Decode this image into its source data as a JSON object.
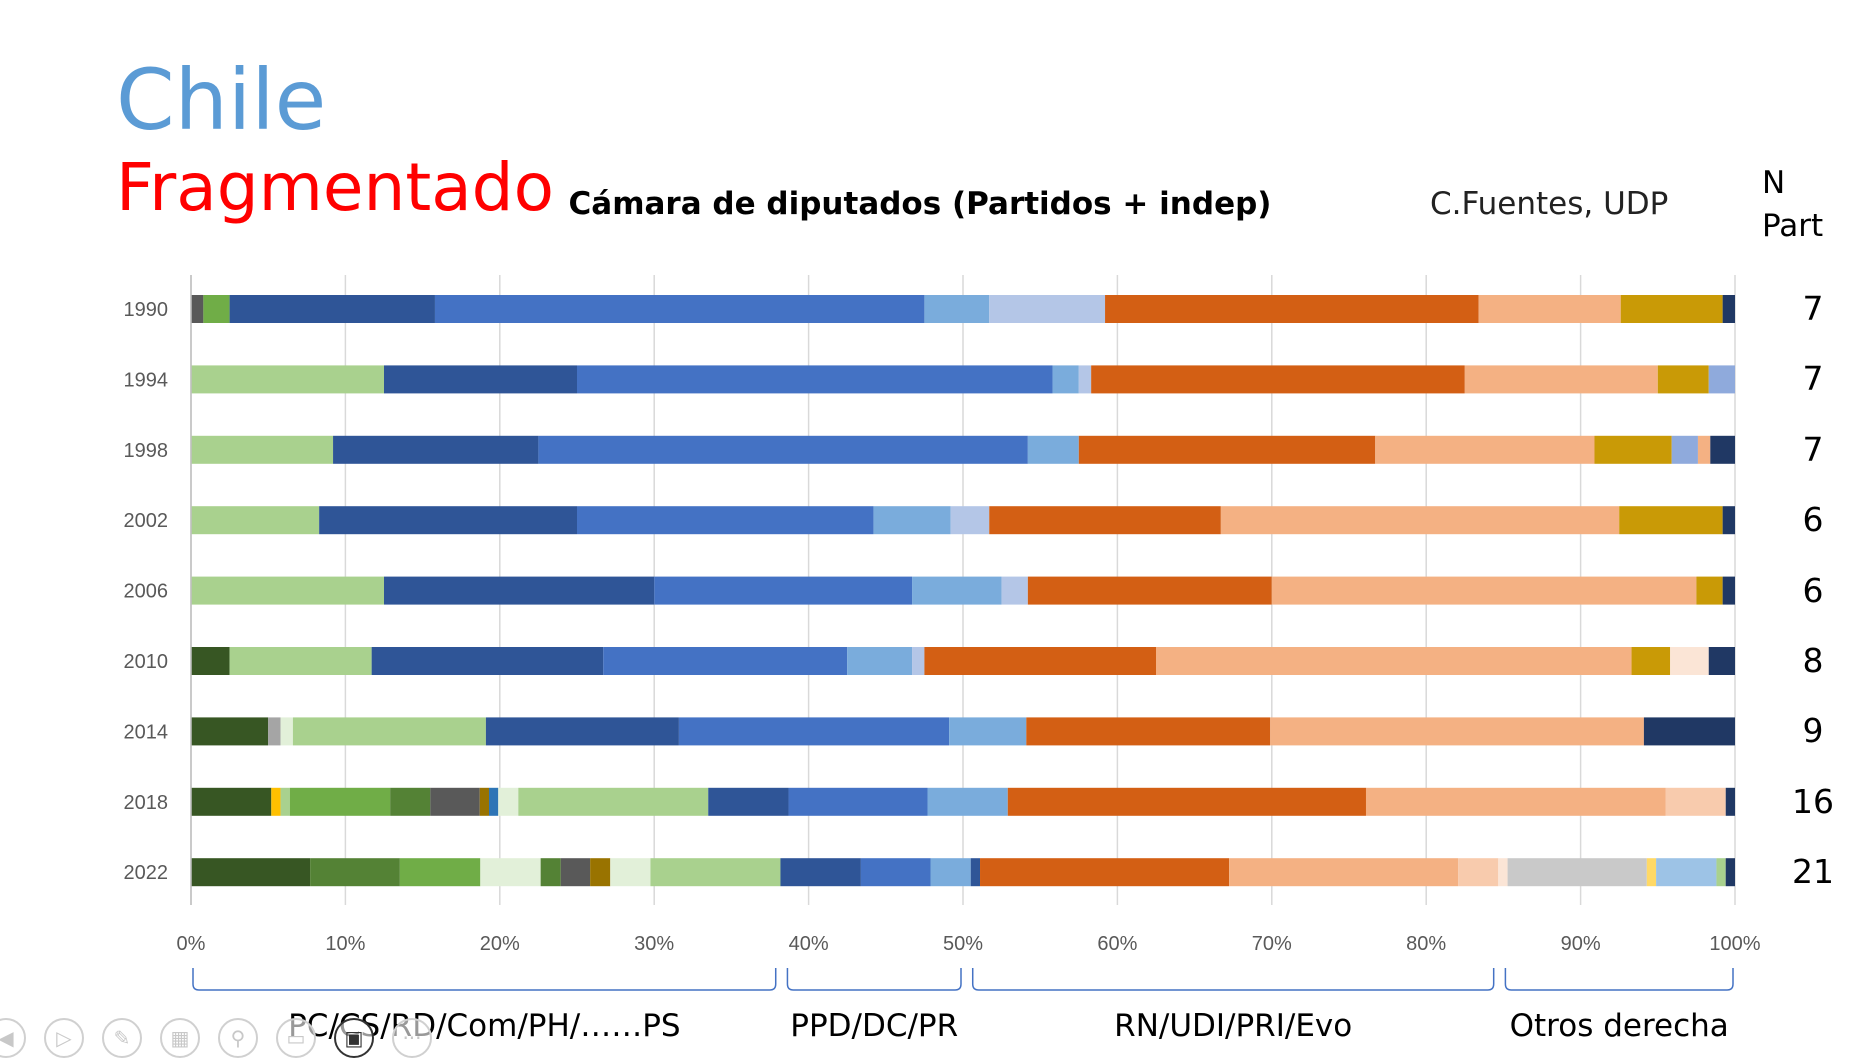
{
  "header": {
    "title_line1": "Chile",
    "title_line2": "Fragmentado",
    "author": "C.Fuentes, UDP",
    "npart_n": "N",
    "npart_part": "Part"
  },
  "chart_data": {
    "type": "bar",
    "orientation": "horizontal",
    "stacked": "percent",
    "title": "Cámara de diputados (Partidos + indep)",
    "categories": [
      "1990",
      "1994",
      "1998",
      "2002",
      "2006",
      "2010",
      "2014",
      "2018",
      "2022"
    ],
    "xlim": [
      0,
      100
    ],
    "xticks": [
      "0%",
      "10%",
      "20%",
      "30%",
      "40%",
      "50%",
      "60%",
      "70%",
      "80%",
      "90%",
      "100%"
    ],
    "grid": true,
    "legend": "none",
    "rows": [
      {
        "year": "1990",
        "n_part": "7",
        "segments": [
          {
            "value": 0.8,
            "color": "#595959"
          },
          {
            "value": 1.7,
            "color": "#70ad47"
          },
          {
            "value": 13.3,
            "color": "#2f5597"
          },
          {
            "value": 31.7,
            "color": "#4472c4"
          },
          {
            "value": 4.2,
            "color": "#7aacdc"
          },
          {
            "value": 7.5,
            "color": "#b4c6e7"
          },
          {
            "value": 24.2,
            "color": "#d35f14"
          },
          {
            "value": 9.2,
            "color": "#f4b183"
          },
          {
            "value": 6.6,
            "color": "#c99a06"
          },
          {
            "value": 0.8,
            "color": "#203864"
          }
        ]
      },
      {
        "year": "1994",
        "n_part": "7",
        "segments": [
          {
            "value": 12.5,
            "color": "#a9d18e"
          },
          {
            "value": 12.5,
            "color": "#2f5597"
          },
          {
            "value": 30.8,
            "color": "#4472c4"
          },
          {
            "value": 1.7,
            "color": "#7aacdc"
          },
          {
            "value": 0.8,
            "color": "#b4c6e7"
          },
          {
            "value": 24.2,
            "color": "#d35f14"
          },
          {
            "value": 12.5,
            "color": "#f4b183"
          },
          {
            "value": 3.3,
            "color": "#c99a06"
          },
          {
            "value": 1.7,
            "color": "#8faadc"
          }
        ]
      },
      {
        "year": "1998",
        "n_part": "7",
        "segments": [
          {
            "value": 9.2,
            "color": "#a9d18e"
          },
          {
            "value": 13.3,
            "color": "#2f5597"
          },
          {
            "value": 31.7,
            "color": "#4472c4"
          },
          {
            "value": 3.3,
            "color": "#7aacdc"
          },
          {
            "value": 19.2,
            "color": "#d35f14"
          },
          {
            "value": 14.2,
            "color": "#f4b183"
          },
          {
            "value": 5.0,
            "color": "#c99a06"
          },
          {
            "value": 1.7,
            "color": "#8faadc"
          },
          {
            "value": 0.8,
            "color": "#f4b183"
          },
          {
            "value": 1.6,
            "color": "#203864"
          }
        ]
      },
      {
        "year": "2002",
        "n_part": "6",
        "segments": [
          {
            "value": 8.3,
            "color": "#a9d18e"
          },
          {
            "value": 16.7,
            "color": "#2f5597"
          },
          {
            "value": 19.2,
            "color": "#4472c4"
          },
          {
            "value": 5.0,
            "color": "#7aacdc"
          },
          {
            "value": 2.5,
            "color": "#b4c6e7"
          },
          {
            "value": 15.0,
            "color": "#d35f14"
          },
          {
            "value": 25.8,
            "color": "#f4b183"
          },
          {
            "value": 6.7,
            "color": "#c99a06"
          },
          {
            "value": 0.8,
            "color": "#203864"
          }
        ]
      },
      {
        "year": "2006",
        "n_part": "6",
        "segments": [
          {
            "value": 12.5,
            "color": "#a9d18e"
          },
          {
            "value": 17.5,
            "color": "#2f5597"
          },
          {
            "value": 16.7,
            "color": "#4472c4"
          },
          {
            "value": 5.8,
            "color": "#7aacdc"
          },
          {
            "value": 1.7,
            "color": "#b4c6e7"
          },
          {
            "value": 15.8,
            "color": "#d35f14"
          },
          {
            "value": 27.5,
            "color": "#f4b183"
          },
          {
            "value": 1.7,
            "color": "#c99a06"
          },
          {
            "value": 0.8,
            "color": "#203864"
          }
        ]
      },
      {
        "year": "2010",
        "n_part": "8",
        "segments": [
          {
            "value": 2.5,
            "color": "#375623"
          },
          {
            "value": 9.2,
            "color": "#a9d18e"
          },
          {
            "value": 15.0,
            "color": "#2f5597"
          },
          {
            "value": 15.8,
            "color": "#4472c4"
          },
          {
            "value": 4.2,
            "color": "#7aacdc"
          },
          {
            "value": 0.8,
            "color": "#b4c6e7"
          },
          {
            "value": 15.0,
            "color": "#d35f14"
          },
          {
            "value": 30.8,
            "color": "#f4b183"
          },
          {
            "value": 2.5,
            "color": "#c99a06"
          },
          {
            "value": 2.5,
            "color": "#fbe5d6"
          },
          {
            "value": 1.7,
            "color": "#203864"
          }
        ]
      },
      {
        "year": "2014",
        "n_part": "9",
        "segments": [
          {
            "value": 5.0,
            "color": "#375623"
          },
          {
            "value": 0.8,
            "color": "#a5a5a5"
          },
          {
            "value": 0.8,
            "color": "#e2f0d9"
          },
          {
            "value": 12.5,
            "color": "#a9d18e"
          },
          {
            "value": 12.5,
            "color": "#2f5597"
          },
          {
            "value": 17.5,
            "color": "#4472c4"
          },
          {
            "value": 5.0,
            "color": "#7aacdc"
          },
          {
            "value": 15.8,
            "color": "#d35f14"
          },
          {
            "value": 24.2,
            "color": "#f4b183"
          },
          {
            "value": 5.9,
            "color": "#203864"
          }
        ]
      },
      {
        "year": "2018",
        "n_part": "16",
        "segments": [
          {
            "value": 5.2,
            "color": "#375623"
          },
          {
            "value": 0.6,
            "color": "#ffc000"
          },
          {
            "value": 0.6,
            "color": "#a9d18e"
          },
          {
            "value": 6.5,
            "color": "#70ad47"
          },
          {
            "value": 2.6,
            "color": "#548235"
          },
          {
            "value": 3.2,
            "color": "#595959"
          },
          {
            "value": 0.6,
            "color": "#997300"
          },
          {
            "value": 0.6,
            "color": "#2e75b6"
          },
          {
            "value": 1.3,
            "color": "#e2f0d9"
          },
          {
            "value": 12.3,
            "color": "#a9d18e"
          },
          {
            "value": 5.2,
            "color": "#2f5597"
          },
          {
            "value": 9.0,
            "color": "#4472c4"
          },
          {
            "value": 5.2,
            "color": "#7aacdc"
          },
          {
            "value": 23.2,
            "color": "#d35f14"
          },
          {
            "value": 19.4,
            "color": "#f4b183"
          },
          {
            "value": 3.9,
            "color": "#f8cbad"
          },
          {
            "value": 0.6,
            "color": "#203864"
          }
        ]
      },
      {
        "year": "2022",
        "n_part": "21",
        "segments": [
          {
            "value": 7.7,
            "color": "#375623"
          },
          {
            "value": 5.8,
            "color": "#548235"
          },
          {
            "value": 5.2,
            "color": "#70ad47"
          },
          {
            "value": 3.9,
            "color": "#e2f0d9"
          },
          {
            "value": 1.3,
            "color": "#548235"
          },
          {
            "value": 1.9,
            "color": "#595959"
          },
          {
            "value": 1.3,
            "color": "#997300"
          },
          {
            "value": 2.6,
            "color": "#e2f0d9"
          },
          {
            "value": 8.4,
            "color": "#a9d18e"
          },
          {
            "value": 5.2,
            "color": "#2f5597"
          },
          {
            "value": 4.5,
            "color": "#4472c4"
          },
          {
            "value": 2.6,
            "color": "#7aacdc"
          },
          {
            "value": 0.6,
            "color": "#2f5597"
          },
          {
            "value": 16.1,
            "color": "#d35f14"
          },
          {
            "value": 14.8,
            "color": "#f4b183"
          },
          {
            "value": 2.6,
            "color": "#f8cbad"
          },
          {
            "value": 0.6,
            "color": "#fbe5d6"
          },
          {
            "value": 9.0,
            "color": "#c9c9c9"
          },
          {
            "value": 0.6,
            "color": "#ffd966"
          },
          {
            "value": 3.9,
            "color": "#9dc3e6"
          },
          {
            "value": 0.6,
            "color": "#a9d18e"
          },
          {
            "value": 0.6,
            "color": "#203864"
          }
        ]
      }
    ],
    "groups": [
      {
        "label": "PC/CS/RD/Com/PH/……PS",
        "from": 0,
        "to": 38
      },
      {
        "label": "PPD/DC/PR",
        "from": 38.5,
        "to": 50
      },
      {
        "label": "RN/UDI/PRI/Evo",
        "from": 50.5,
        "to": 84.5
      },
      {
        "label": "Otros derecha",
        "from": 85,
        "to": 100
      }
    ]
  },
  "toolbar": {
    "icons": [
      "previous-icon",
      "play-icon",
      "pen-icon",
      "slides-icon",
      "zoom-icon",
      "subtitles-icon",
      "camera-icon",
      "more-icon"
    ],
    "glyphs": [
      "◀",
      "▷",
      "✎",
      "▦",
      "⚲",
      "▭",
      "▣",
      "···"
    ]
  }
}
